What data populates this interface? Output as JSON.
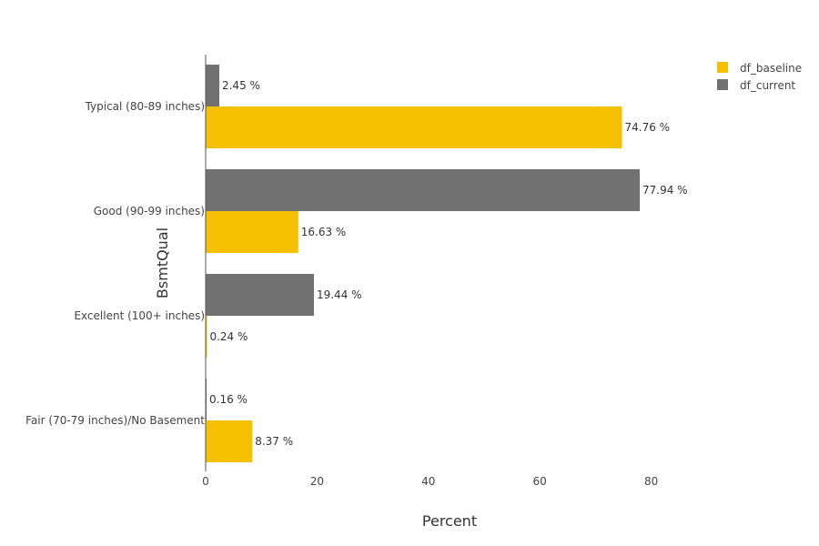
{
  "chart_data": {
    "type": "bar",
    "orientation": "horizontal",
    "categories": [
      "Typical (80-89 inches)",
      "Good (90-99 inches)",
      "Excellent (100+ inches)",
      "Fair (70-79 inches)/No Basement"
    ],
    "series": [
      {
        "name": "df_current",
        "color": "#707170",
        "values": [
          2.45,
          77.94,
          19.44,
          0.16
        ],
        "labels": [
          "2.45 %",
          "77.94 %",
          "19.44 %",
          "0.16 %"
        ]
      },
      {
        "name": "df_baseline",
        "color": "#F5C000",
        "values": [
          74.76,
          16.63,
          0.24,
          8.37
        ],
        "labels": [
          "74.76 %",
          "16.63 %",
          "0.24 %",
          "8.37 %"
        ]
      }
    ],
    "legend_order": [
      "df_baseline",
      "df_current"
    ],
    "xlabel": "Percent",
    "ylabel": "BsmtQual",
    "xlim": [
      0,
      100
    ],
    "xticks": [
      0,
      20,
      40,
      60,
      80
    ],
    "legend_position": "top-right",
    "grid": false
  }
}
